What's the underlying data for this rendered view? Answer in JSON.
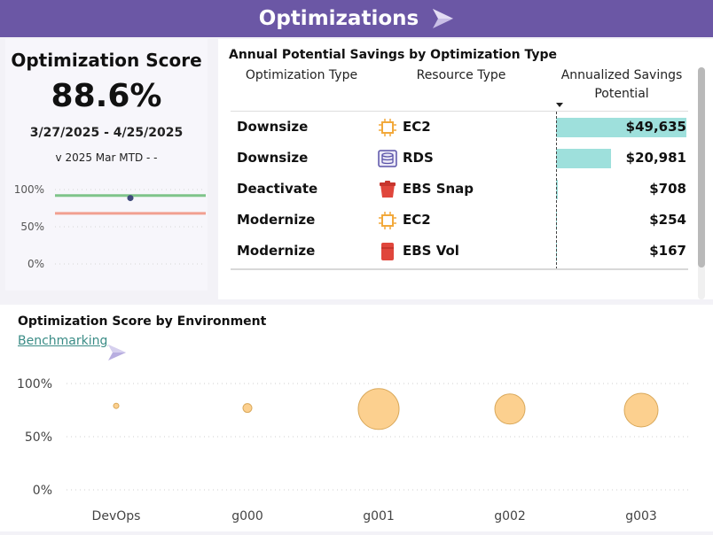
{
  "header": {
    "title": "Optimizations"
  },
  "score_card": {
    "title": "Optimization Score",
    "value": "88.6%",
    "date_range": "3/27/2025 - 4/25/2025",
    "period_label": "v 2025 Mar MTD - -",
    "trend": {
      "y_ticks": [
        "100%",
        "50%",
        "0%"
      ],
      "score_point": 88.6,
      "lines": [
        {
          "name": "",
          "value": 92,
          "color": "#7fc48a"
        },
        {
          "name": "",
          "value": 68,
          "color": "#f1a091"
        }
      ]
    }
  },
  "savings_table": {
    "title": "Annual Potential Savings by Optimization Type",
    "columns": {
      "type": "Optimization Type",
      "resource": "Resource Type",
      "savings": "Annualized Savings Potential"
    },
    "rows": [
      {
        "type": "Downsize",
        "resource": "EC2",
        "icon": "ec2-chip-icon",
        "savings": "$49,635",
        "value": 49635
      },
      {
        "type": "Downsize",
        "resource": "RDS",
        "icon": "rds-database-icon",
        "savings": "$20,981",
        "value": 20981
      },
      {
        "type": "Deactivate",
        "resource": "EBS Snap",
        "icon": "ebs-snapshot-icon",
        "savings": "$708",
        "value": 708
      },
      {
        "type": "Modernize",
        "resource": "EC2",
        "icon": "ec2-chip-icon",
        "savings": "$254",
        "value": 254
      },
      {
        "type": "Modernize",
        "resource": "EBS Vol",
        "icon": "ebs-volume-icon",
        "savings": "$167",
        "value": 167
      }
    ],
    "max_value": 49635
  },
  "environment": {
    "title": "Optimization Score by Environment",
    "link_label": "Benchmarking"
  },
  "chart_data": {
    "type": "scatter",
    "title": "Optimization Score by Environment",
    "categories": [
      "DevOps",
      "g000",
      "g001",
      "g002",
      "g003"
    ],
    "values": [
      79,
      77,
      76,
      76,
      75
    ],
    "sizes": [
      3,
      5,
      23,
      17,
      19
    ],
    "y_ticks": [
      "100%",
      "50%",
      "0%"
    ],
    "ylim": [
      0,
      100
    ],
    "grid": true,
    "color": "#fcd08f"
  },
  "colors": {
    "banner": "#6b57a5",
    "bar": "#9ee0dc",
    "link": "#3a8c86",
    "bubble_fill": "#fcd08f",
    "bubble_stroke": "#d9a85a"
  }
}
